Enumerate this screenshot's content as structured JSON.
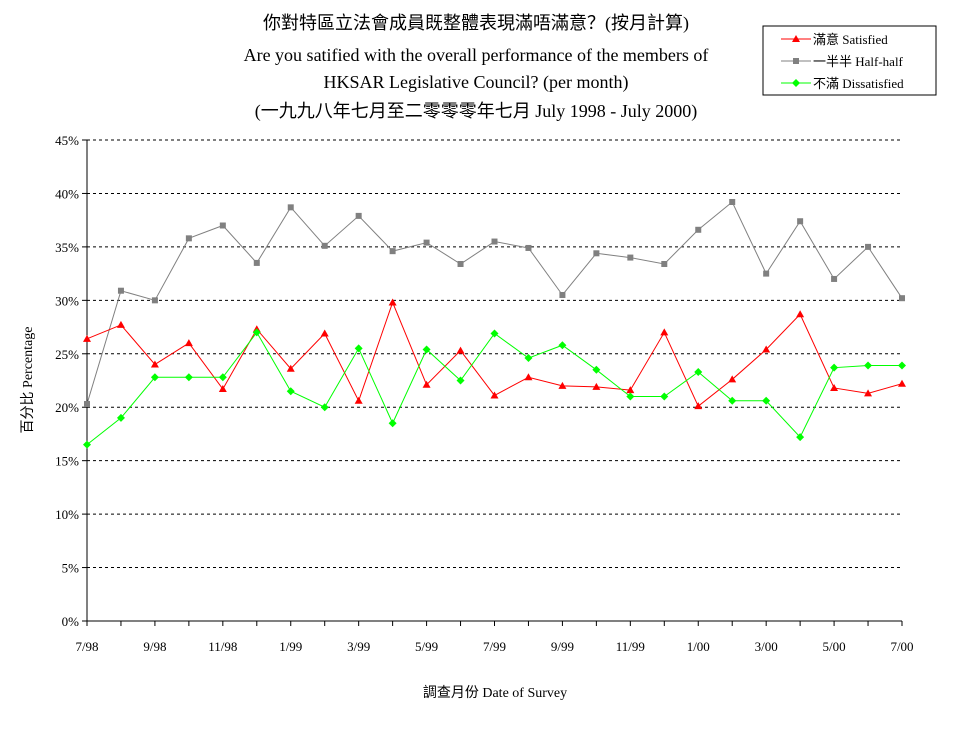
{
  "chart_data": {
    "type": "line",
    "title": [
      "你對特區立法會成員既整體表現滿唔滿意？(按月計算)",
      "Are you satified with the overall performance of the members of",
      "HKSAR Legislative Council? (per month)",
      "(一九九八年七月至二零零零年七月 July 1998 - July 2000)"
    ],
    "xlabel": "調查月份 Date of Survey",
    "ylabel": "百分比 Percentage",
    "ylim": [
      0,
      45
    ],
    "yticks": [
      "0%",
      "5%",
      "10%",
      "15%",
      "20%",
      "25%",
      "30%",
      "35%",
      "40%",
      "45%"
    ],
    "xtick_labels": [
      "7/98",
      "9/98",
      "11/98",
      "1/99",
      "3/99",
      "5/99",
      "7/99",
      "9/99",
      "11/99",
      "1/00",
      "3/00",
      "5/00",
      "7/00"
    ],
    "x": [
      "7/98",
      "8/98",
      "9/98",
      "10/98",
      "11/98",
      "12/98",
      "1/99",
      "2/99",
      "3/99",
      "4/99",
      "5/99",
      "6/99",
      "7/99",
      "8/99",
      "9/99",
      "10/99",
      "11/99",
      "12/99",
      "1/00",
      "2/00",
      "3/00",
      "4/00",
      "5/00",
      "6/00",
      "7/00"
    ],
    "grid": "horizontal dashed",
    "legend_placement": "top-right",
    "series": [
      {
        "name": "滿意 Satisfied",
        "color": "#ff0000",
        "marker": "triangle",
        "values": [
          26.4,
          27.7,
          24.0,
          26.0,
          21.7,
          27.3,
          23.6,
          26.9,
          20.6,
          29.8,
          22.1,
          25.3,
          21.1,
          22.8,
          22.0,
          21.9,
          21.6,
          27.0,
          20.1,
          22.6,
          25.4,
          28.7,
          21.8,
          21.3,
          22.2
        ]
      },
      {
        "name": "一半半 Half-half",
        "color": "#808080",
        "marker": "square",
        "values": [
          20.3,
          30.9,
          30.0,
          35.8,
          37.0,
          33.5,
          38.7,
          35.1,
          37.9,
          34.6,
          35.4,
          33.4,
          35.5,
          34.9,
          30.5,
          34.4,
          34.0,
          33.4,
          36.6,
          39.2,
          32.5,
          37.4,
          32.0,
          35.0,
          30.2
        ]
      },
      {
        "name": "不滿 Dissatisfied",
        "color": "#00ff00",
        "marker": "diamond",
        "values": [
          16.5,
          19.0,
          22.8,
          22.8,
          22.8,
          27.0,
          21.5,
          20.0,
          25.5,
          18.5,
          25.4,
          22.5,
          26.9,
          24.6,
          25.8,
          23.5,
          21.0,
          21.0,
          23.3,
          20.6,
          20.6,
          17.2,
          23.7,
          23.9,
          23.9
        ]
      }
    ]
  }
}
